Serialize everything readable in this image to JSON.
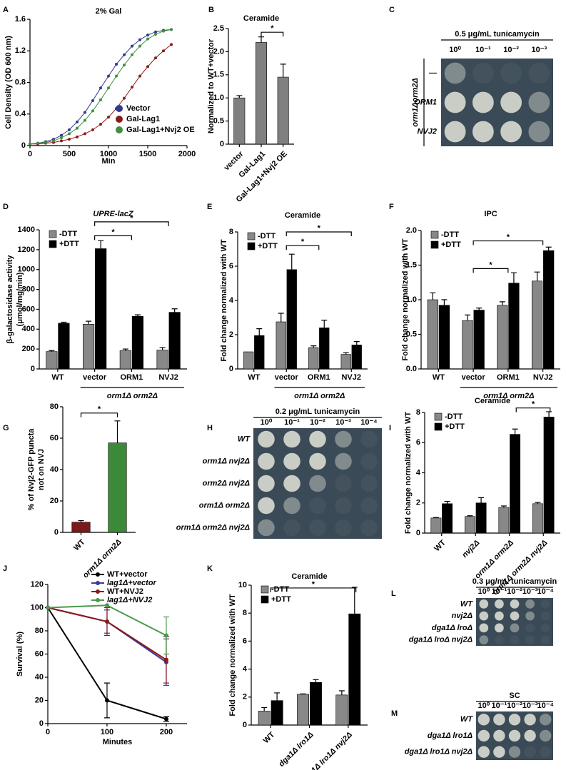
{
  "chart_data": [
    {
      "panel": "A",
      "type": "line",
      "title": "2% Gal",
      "xlabel": "Min",
      "ylabel": "Cell Density (OD 600 nm)",
      "x": [
        0,
        100,
        200,
        300,
        400,
        500,
        600,
        700,
        800,
        900,
        1000,
        1100,
        1200,
        1300,
        1400,
        1500,
        1600,
        1700,
        1800
      ],
      "series": [
        {
          "name": "Vector",
          "color": "#2e3a8c",
          "values": [
            0.02,
            0.03,
            0.05,
            0.08,
            0.13,
            0.2,
            0.3,
            0.42,
            0.57,
            0.73,
            0.88,
            1.03,
            1.15,
            1.26,
            1.34,
            1.4,
            1.44,
            1.46,
            1.47
          ]
        },
        {
          "name": "Gal-Lag1",
          "color": "#8b1a1a",
          "values": [
            0.02,
            0.02,
            0.03,
            0.04,
            0.06,
            0.08,
            0.11,
            0.15,
            0.2,
            0.27,
            0.36,
            0.47,
            0.6,
            0.74,
            0.88,
            1.0,
            1.11,
            1.2,
            1.28
          ]
        },
        {
          "name": "Gal-Lag1+Nvj2 OE",
          "color": "#3f8f3f",
          "values": [
            0.02,
            0.03,
            0.04,
            0.06,
            0.1,
            0.15,
            0.22,
            0.32,
            0.44,
            0.58,
            0.73,
            0.88,
            1.02,
            1.15,
            1.26,
            1.35,
            1.41,
            1.45,
            1.47
          ]
        }
      ],
      "xlim": [
        0,
        2000
      ],
      "xticks": [
        0,
        500,
        1000,
        1500,
        2000
      ],
      "ylim": [
        0,
        1.6
      ],
      "yticks": [
        0,
        0.4,
        0.8,
        1.2,
        1.6
      ],
      "legend": "lower right"
    },
    {
      "panel": "B",
      "type": "bar",
      "title": "Ceramide",
      "ylabel": "Normalized to WT+vector",
      "categories": [
        "vector",
        "Gal-Lag1",
        "Gal-Lag1+Nvj2 OE"
      ],
      "values": [
        1.0,
        2.2,
        1.45
      ],
      "errors": [
        0.05,
        0.12,
        0.28
      ],
      "color": "#808080",
      "ylim": [
        0,
        2.5
      ],
      "yticks": [
        0,
        0.5,
        {
          "value": 1,
          "label": "1.0"
        },
        1.5,
        {
          "value": 2,
          "label": "2.0"
        },
        2.5
      ],
      "rotate_labels": true,
      "annotations": [
        "*"
      ]
    },
    {
      "panel": "C",
      "type": "plate",
      "title": "0.5 μg/mL tunicamycin",
      "columns": [
        "10⁰",
        "10⁻¹",
        "10⁻²",
        "10⁻³"
      ],
      "rows": [
        "—",
        "ORM1",
        "NVJ2"
      ],
      "row_group_label": "orm1Δorm2Δ"
    },
    {
      "panel": "D",
      "type": "grouped_bar",
      "title": "UPRE-lacZ",
      "title_style": "italic",
      "ylabel": [
        "β-galactosidase activity",
        "(μmol/mg/min)"
      ],
      "categories": [
        "WT",
        "vector",
        "ORM1",
        "NVJ2"
      ],
      "group_label": "orm1Δ orm2Δ",
      "series": [
        {
          "name": "-DTT",
          "color": "#888888",
          "values": [
            175,
            450,
            185,
            190
          ],
          "errors": [
            10,
            30,
            15,
            25
          ]
        },
        {
          "name": "+DTT",
          "color": "#000000",
          "values": [
            460,
            1210,
            530,
            570
          ],
          "errors": [
            10,
            80,
            15,
            35
          ]
        }
      ],
      "ylim": [
        0,
        1400
      ],
      "yticks": [
        0,
        200,
        400,
        600,
        800,
        1000,
        1200,
        1400
      ],
      "annotations": [
        "*",
        "*"
      ]
    },
    {
      "panel": "E",
      "type": "grouped_bar",
      "title": "Ceramide",
      "ylabel": "Fold change normalized with WT",
      "categories": [
        "WT",
        "vector",
        "ORM1",
        "NVJ2"
      ],
      "group_label": "orm1Δ orm2Δ",
      "series": [
        {
          "name": "-DTT",
          "color": "#888888",
          "values": [
            1.0,
            2.75,
            1.25,
            0.85
          ],
          "errors": [
            0,
            0.5,
            0.1,
            0.1
          ]
        },
        {
          "name": "+DTT",
          "color": "#000000",
          "values": [
            1.95,
            5.8,
            2.4,
            1.4
          ],
          "errors": [
            0.4,
            0.9,
            0.45,
            0.2
          ]
        }
      ],
      "ylim": [
        0,
        8
      ],
      "yticks": [
        0,
        2,
        4,
        6,
        8
      ],
      "annotations": [
        "*",
        "*"
      ]
    },
    {
      "panel": "F",
      "type": "grouped_bar",
      "title": "IPC",
      "ylabel": "Fold change normalized with WT",
      "categories": [
        "WT",
        "vector",
        "ORM1",
        "NVJ2"
      ],
      "group_label": "orm1Δ orm2Δ",
      "series": [
        {
          "name": "-DTT",
          "color": "#888888",
          "values": [
            1.0,
            0.7,
            0.92,
            1.27
          ],
          "errors": [
            0.1,
            0.08,
            0.05,
            0.13
          ]
        },
        {
          "name": "+DTT",
          "color": "#000000",
          "values": [
            0.92,
            0.85,
            1.24,
            1.71
          ],
          "errors": [
            0.08,
            0.03,
            0.15,
            0.05
          ]
        }
      ],
      "ylim": [
        0,
        2
      ],
      "yticks": [
        {
          "value": 0,
          "label": "0.0"
        },
        0.5,
        {
          "value": 1,
          "label": "1.0"
        },
        1.5,
        {
          "value": 2,
          "label": "2.0"
        }
      ],
      "annotations": [
        "*",
        "*"
      ]
    },
    {
      "panel": "G",
      "type": "bar",
      "ylabel": [
        "% of Nvj2-GFP puncta",
        "not on NVJ"
      ],
      "categories": [
        "WT",
        "orm1Δ orm2Δ"
      ],
      "values": [
        6.5,
        57
      ],
      "errors": [
        1,
        14
      ],
      "colors": [
        "#7b1a1a",
        "#3a8a3a"
      ],
      "ylim": [
        0,
        80
      ],
      "yticks": [
        0,
        20,
        40,
        60,
        80
      ],
      "rotate_labels": true,
      "annotations": [
        "*"
      ]
    },
    {
      "panel": "H",
      "type": "plate",
      "title": "0.2 μg/mL tunicamycin",
      "columns": [
        "10⁰",
        "10⁻¹",
        "10⁻²",
        "10⁻³",
        "10⁻⁴"
      ],
      "rows": [
        "WT",
        "orm1Δ nvj2Δ",
        "orm2Δ nvj2Δ",
        "orm1Δ orm2Δ",
        "orm1Δ orm2Δ nvj2Δ"
      ]
    },
    {
      "panel": "I",
      "type": "grouped_bar",
      "title": "Ceramide",
      "ylabel": "Fold change normalized with WT",
      "categories": [
        "WT",
        "nvj2Δ",
        "orm1Δ orm2Δ",
        "orm1Δ orm2Δ nvj2Δ"
      ],
      "series": [
        {
          "name": "-DTT",
          "color": "#888888",
          "values": [
            1.0,
            1.1,
            1.7,
            1.95
          ],
          "errors": [
            0.03,
            0.05,
            0.1,
            0.08
          ]
        },
        {
          "name": "+DTT",
          "color": "#000000",
          "values": [
            1.95,
            2.0,
            6.55,
            7.7
          ],
          "errors": [
            0.15,
            0.35,
            0.35,
            0.35
          ]
        }
      ],
      "ylim": [
        0,
        8
      ],
      "yticks": [
        0,
        2,
        4,
        6,
        8
      ],
      "rotate_labels": true,
      "annotations": [
        "*"
      ]
    },
    {
      "panel": "J",
      "type": "line",
      "xlabel": "Minutes",
      "ylabel": "Survival (%)",
      "x": [
        0,
        100,
        200
      ],
      "series": [
        {
          "name": "WT+vector",
          "color": "#000000",
          "values": [
            100,
            20,
            4
          ],
          "errors": [
            0,
            15,
            2
          ]
        },
        {
          "name": "lag1Δ+vector",
          "color": "#3a3a9a",
          "values": [
            100,
            88,
            53
          ],
          "errors": [
            0,
            10,
            20
          ]
        },
        {
          "name": "WT+NVJ2",
          "color": "#8b1a1a",
          "values": [
            100,
            88,
            55
          ],
          "errors": [
            0,
            12,
            20
          ]
        },
        {
          "name": "lag1Δ+NVJ2",
          "color": "#4a9a4a",
          "values": [
            100,
            102,
            76
          ],
          "errors": [
            0,
            0,
            16
          ]
        }
      ],
      "xlim": [
        0,
        235
      ],
      "xticks": [
        0,
        100,
        200
      ],
      "ylim": [
        0,
        120
      ],
      "yticks": [
        0,
        20,
        40,
        60,
        80,
        100,
        120
      ],
      "legend": "upper right"
    },
    {
      "panel": "K",
      "type": "grouped_bar",
      "title": "Ceramide",
      "ylabel": "Fold change normalized with WT",
      "categories": [
        "WT",
        "dga1Δ lro1Δ",
        "dga1Δ lro1Δ nvj2Δ"
      ],
      "series": [
        {
          "name": "-DTT",
          "color": "#888888",
          "values": [
            1.0,
            2.2,
            2.15
          ],
          "errors": [
            0.25,
            0.03,
            0.3
          ]
        },
        {
          "name": "+DTT",
          "color": "#000000",
          "values": [
            1.75,
            3.05,
            7.95
          ],
          "errors": [
            0.55,
            0.2,
            1.9
          ]
        }
      ],
      "ylim": [
        0,
        10
      ],
      "yticks": [
        0,
        2,
        4,
        6,
        8,
        10
      ],
      "rotate_labels": true,
      "annotations": [
        "*"
      ]
    },
    {
      "panel": "L",
      "type": "plate",
      "title": "0.3 μg/mL tunicamycin",
      "columns": [
        "10⁰",
        "10⁻¹",
        "10⁻²",
        "10⁻³",
        "10⁻⁴"
      ],
      "rows": [
        "WT",
        "nvj2Δ",
        "dga1Δ lroΔ",
        "dga1Δ lroΔ nvj2Δ"
      ]
    },
    {
      "panel": "M",
      "type": "plate",
      "title": "SC",
      "columns": [
        "10⁰",
        "10⁻¹",
        "10⁻²",
        "10⁻³",
        "10⁻⁴"
      ],
      "rows": [
        "WT",
        "dga1Δ lro1Δ",
        "dga1Δ lro1Δ nvj2Δ"
      ]
    }
  ]
}
